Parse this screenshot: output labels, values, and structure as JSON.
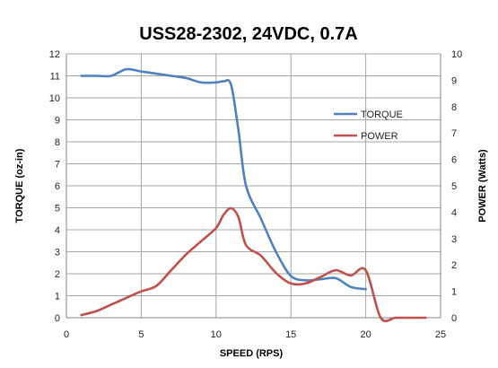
{
  "chart_data": {
    "type": "line",
    "title": "USS28-2302, 24VDC, 0.7A",
    "xlabel": "SPEED (RPS)",
    "ylabel": "TORQUE (oz-in)",
    "y2label": "POWER (Watts)",
    "xlim": [
      0,
      25
    ],
    "ylim": [
      0,
      12
    ],
    "y2lim": [
      0,
      10
    ],
    "x_ticks": [
      "0",
      "5",
      "10",
      "15",
      "20",
      "25"
    ],
    "y_ticks": [
      "0",
      "1",
      "2",
      "3",
      "4",
      "5",
      "6",
      "7",
      "8",
      "9",
      "10",
      "11",
      "12"
    ],
    "y2_ticks": [
      "0",
      "1",
      "2",
      "3",
      "4",
      "5",
      "6",
      "7",
      "8",
      "9",
      "10"
    ],
    "grid": true,
    "legend_position": "right",
    "series": [
      {
        "name": "TORQUE",
        "axis": "left",
        "color": "#4f81bd",
        "x": [
          1,
          2,
          3,
          4,
          5,
          6,
          7,
          8,
          9,
          10,
          10.5,
          11,
          11.5,
          12,
          13,
          14,
          15,
          16,
          17,
          18,
          19,
          20
        ],
        "y": [
          11.0,
          11.0,
          11.0,
          11.3,
          11.2,
          11.1,
          11.0,
          10.9,
          10.7,
          10.7,
          10.75,
          10.6,
          8.5,
          6.0,
          4.5,
          3.0,
          1.9,
          1.7,
          1.75,
          1.8,
          1.4,
          1.3
        ]
      },
      {
        "name": "POWER",
        "axis": "right",
        "color": "#c0504d",
        "x": [
          1,
          2,
          3,
          4,
          5,
          6,
          7,
          8,
          9,
          10,
          10.5,
          11,
          11.5,
          12,
          13,
          14,
          15,
          16,
          17,
          18,
          19,
          20,
          21,
          22,
          23,
          24
        ],
        "y": [
          0.1,
          0.25,
          0.5,
          0.75,
          1.0,
          1.2,
          1.8,
          2.4,
          2.9,
          3.4,
          3.9,
          4.15,
          3.8,
          2.75,
          2.35,
          1.7,
          1.3,
          1.3,
          1.55,
          1.8,
          1.6,
          1.8,
          0.0,
          0.0,
          0.0,
          0.0
        ]
      }
    ]
  }
}
